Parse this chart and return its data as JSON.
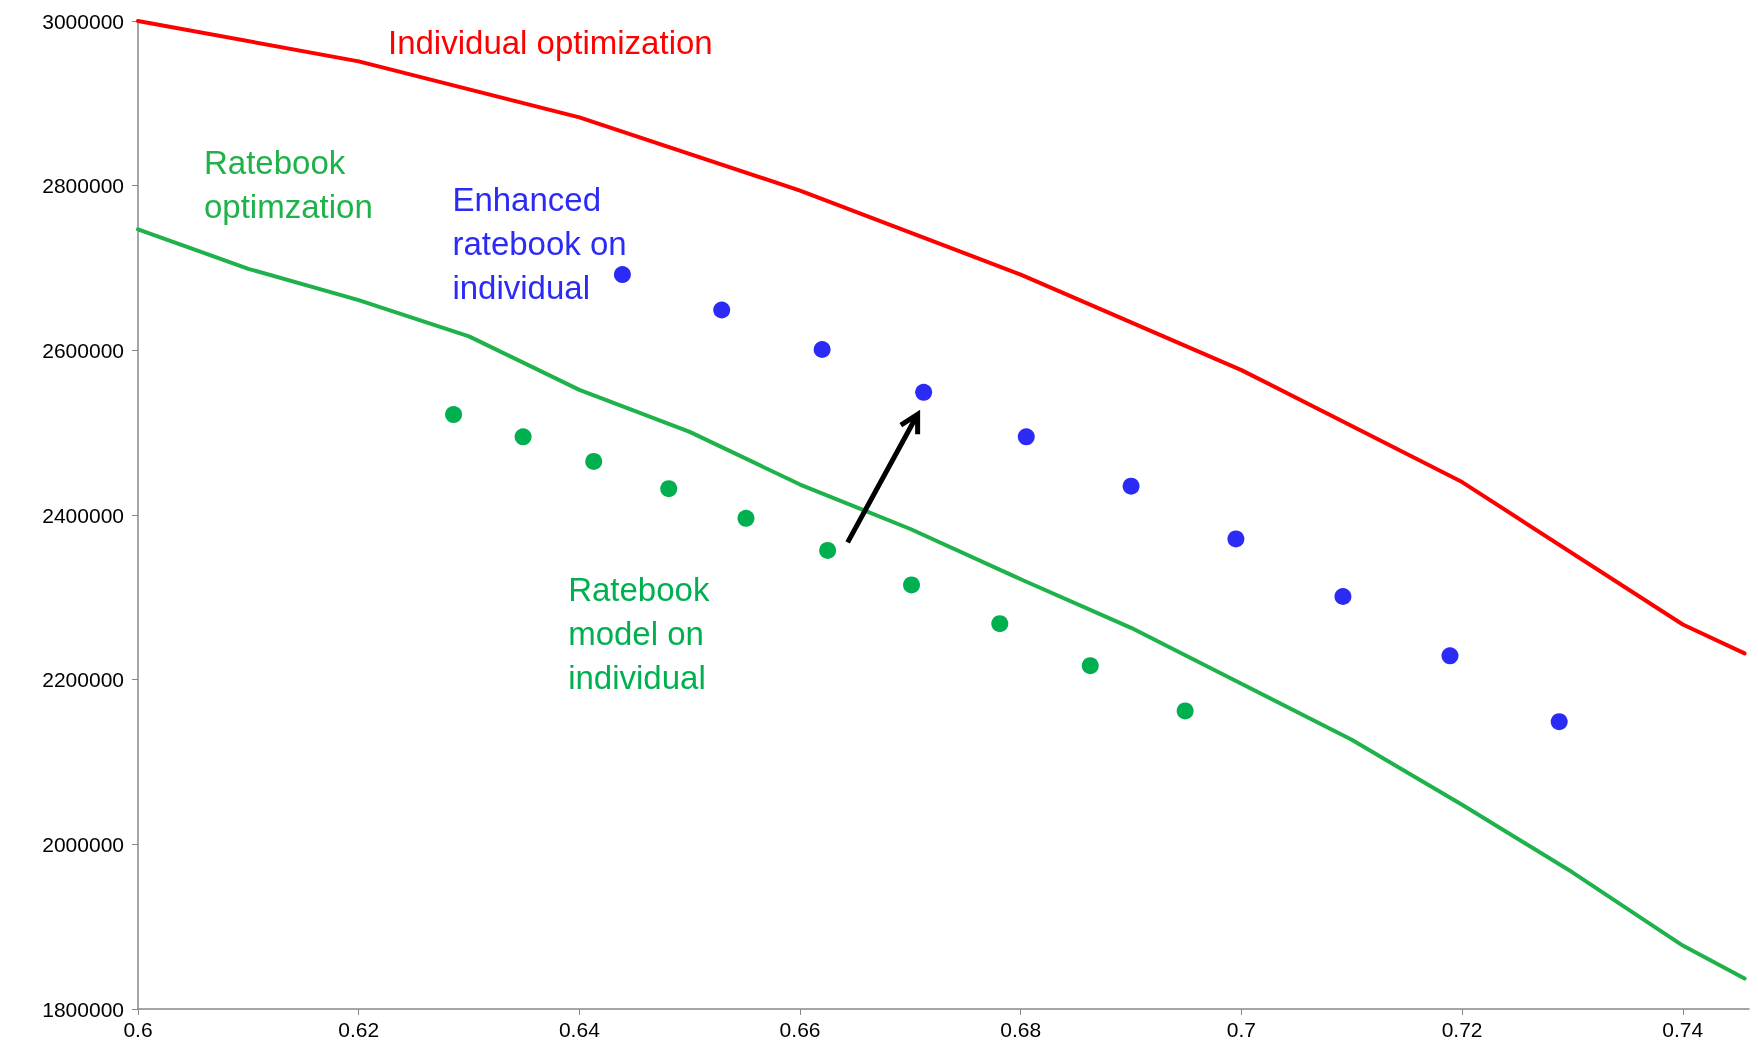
{
  "chart_data": {
    "type": "line",
    "xlim": [
      0.6,
      0.746
    ],
    "xticks": [
      0.6,
      0.62,
      0.64,
      0.66,
      0.68,
      0.7,
      0.72,
      0.74
    ],
    "ylim": [
      1800000,
      3000000
    ],
    "yticks": [
      1800000,
      2000000,
      2200000,
      2400000,
      2600000,
      2800000,
      3000000
    ],
    "grid": false,
    "legend": false,
    "marker": "none",
    "series": [
      {
        "name": "Individual optimization",
        "color": "#ff0000",
        "x": [
          0.6,
          0.62,
          0.64,
          0.66,
          0.68,
          0.7,
          0.72,
          0.74,
          0.7456
        ],
        "values": [
          3000000,
          2951000,
          2883000,
          2794000,
          2692000,
          2576000,
          2440000,
          2267000,
          2232000
        ]
      },
      {
        "name": "Ratebook optimzation",
        "color": "#1fb24a",
        "x": [
          0.6,
          0.61,
          0.62,
          0.63,
          0.64,
          0.65,
          0.66,
          0.67,
          0.68,
          0.69,
          0.7,
          0.71,
          0.72,
          0.73,
          0.74,
          0.7456
        ],
        "values": [
          2747000,
          2699000,
          2661000,
          2617000,
          2552000,
          2501000,
          2437000,
          2383000,
          2322000,
          2263000,
          2195000,
          2127000,
          2048000,
          1966000,
          1877000,
          1837000
        ]
      },
      {
        "name": "Enhanced ratebook on individual",
        "type": "scatter",
        "color": "#2b2bf5",
        "marker": "circle",
        "x": [
          0.6439,
          0.6529,
          0.662,
          0.6712,
          0.6805,
          0.69,
          0.6995,
          0.7092,
          0.7189,
          0.7288
        ],
        "values": [
          2692000,
          2649000,
          2601000,
          2549000,
          2495000,
          2435000,
          2371000,
          2301000,
          2229000,
          2149000
        ]
      },
      {
        "name": "Ratebook model on individual",
        "type": "scatter",
        "color": "#00b050",
        "marker": "circle",
        "x": [
          0.6286,
          0.6349,
          0.6413,
          0.6481,
          0.6551,
          0.6625,
          0.6701,
          0.6781,
          0.6863,
          0.6949
        ],
        "values": [
          2522000,
          2495000,
          2465000,
          2432000,
          2396000,
          2357000,
          2315000,
          2268000,
          2217000,
          2162000
        ]
      }
    ]
  }
}
